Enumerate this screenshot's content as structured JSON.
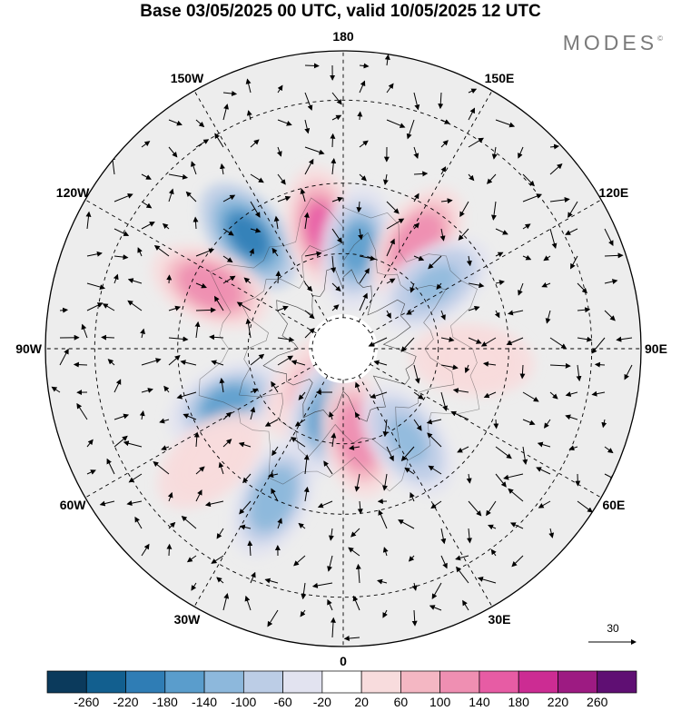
{
  "header": {
    "title": "Base 03/05/2025 00 UTC, valid 10/05/2025 12 UTC",
    "brand": "MODES",
    "brand_mark": "©"
  },
  "map": {
    "projection": "north-polar-stereographic",
    "longitude_labels": [
      {
        "text": "180",
        "lon": 180
      },
      {
        "text": "150E",
        "lon": 150
      },
      {
        "text": "120E",
        "lon": 120
      },
      {
        "text": "90E",
        "lon": 90
      },
      {
        "text": "60E",
        "lon": 60
      },
      {
        "text": "30E",
        "lon": 30
      },
      {
        "text": "0",
        "lon": 0
      },
      {
        "text": "30W",
        "lon": -30
      },
      {
        "text": "60W",
        "lon": -60
      },
      {
        "text": "90W",
        "lon": -90
      },
      {
        "text": "120W",
        "lon": -120
      },
      {
        "text": "150W",
        "lon": -150
      }
    ],
    "anomaly_centers": [
      {
        "sign": "negative",
        "value": -200,
        "lon": -140,
        "lat": 45
      },
      {
        "sign": "positive",
        "value": 160,
        "lon": -170,
        "lat": 52
      },
      {
        "sign": "negative",
        "value": -160,
        "lon": 172,
        "lat": 58
      },
      {
        "sign": "positive",
        "value": 140,
        "lon": 145,
        "lat": 50
      },
      {
        "sign": "negative",
        "value": -120,
        "lon": 125,
        "lat": 55
      },
      {
        "sign": "positive",
        "value": 130,
        "lon": -115,
        "lat": 45
      },
      {
        "sign": "negative",
        "value": -150,
        "lon": -65,
        "lat": 50
      },
      {
        "sign": "positive",
        "value": 100,
        "lon": -40,
        "lat": 75
      },
      {
        "sign": "negative",
        "value": -160,
        "lon": -15,
        "lat": 68
      },
      {
        "sign": "positive",
        "value": 140,
        "lon": 10,
        "lat": 62
      },
      {
        "sign": "negative",
        "value": -120,
        "lon": 35,
        "lat": 55
      },
      {
        "sign": "negative",
        "value": -130,
        "lon": -25,
        "lat": 40
      },
      {
        "sign": "positive",
        "value": 60,
        "lon": 85,
        "lat": 50
      },
      {
        "sign": "positive",
        "value": 60,
        "lon": -50,
        "lat": 38
      }
    ],
    "wind_reference": {
      "label": "30"
    }
  },
  "colorbar": {
    "ticks": [
      "-260",
      "-220",
      "-180",
      "-140",
      "-100",
      "-60",
      "-20",
      "20",
      "60",
      "100",
      "140",
      "180",
      "220",
      "260"
    ],
    "colors": [
      "#0b3a5c",
      "#125f8f",
      "#2f7db5",
      "#5a9dcc",
      "#8db8dc",
      "#bccde6",
      "#e2e3f0",
      "#ffffff",
      "#f8dcdd",
      "#f4b7c3",
      "#ef8fb2",
      "#e75ca4",
      "#cc2c93",
      "#9d1b82",
      "#5f0f73"
    ]
  }
}
